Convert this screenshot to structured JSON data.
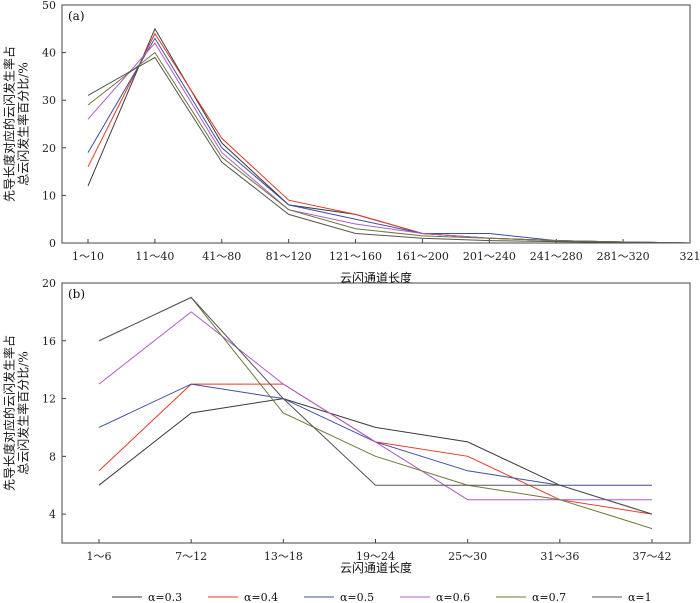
{
  "chart_data": [
    {
      "type": "line",
      "panel_label": "(a)",
      "xlabel": "云闪通道长度",
      "ylabel_line1": "先导长度对应的云闪发生率占",
      "ylabel_line2": "总云闪发生率百分比/%",
      "categories": [
        "1～10",
        "11～40",
        "41～80",
        "81～120",
        "121～160",
        "161～200",
        "201～240",
        "241～280",
        "281～320",
        "321"
      ],
      "ylim": [
        0,
        50
      ],
      "yticks": [
        0,
        10,
        20,
        30,
        40,
        50
      ],
      "series": [
        {
          "name": "α=0.3",
          "color": "#3a3a3a",
          "values": [
            12,
            45,
            21,
            8,
            6,
            2,
            1,
            0.5,
            0.2,
            0
          ]
        },
        {
          "name": "α=0.4",
          "color": "#e03a2a",
          "values": [
            16,
            44,
            22,
            9,
            6,
            2,
            1,
            0.5,
            0.2,
            0
          ]
        },
        {
          "name": "α=0.5",
          "color": "#3d4f9e",
          "values": [
            19,
            43,
            20,
            8,
            5,
            2,
            2,
            0.5,
            0.2,
            0
          ]
        },
        {
          "name": "α=0.6",
          "color": "#b05cc8",
          "values": [
            26,
            42,
            19,
            7,
            4,
            2,
            1,
            0.5,
            0.2,
            0
          ]
        },
        {
          "name": "α=0.7",
          "color": "#6b7a3a",
          "values": [
            29,
            40,
            18,
            7,
            3,
            1.5,
            1,
            0.5,
            0.2,
            0
          ]
        },
        {
          "name": "α=1",
          "color": "#555555",
          "values": [
            31,
            39,
            17,
            6,
            2,
            1,
            0.5,
            0.3,
            0.1,
            0
          ]
        }
      ]
    },
    {
      "type": "line",
      "panel_label": "(b)",
      "xlabel": "云闪通道长度",
      "ylabel_line1": "先导长度对应的云闪发生率占",
      "ylabel_line2": "总云闪发生率百分比/%",
      "categories": [
        "1～6",
        "7～12",
        "13～18",
        "19～24",
        "25～30",
        "31～36",
        "37～42"
      ],
      "ylim": [
        2,
        20
      ],
      "yticks": [
        4,
        8,
        12,
        16,
        20
      ],
      "series": [
        {
          "name": "α=0.3",
          "color": "#3a3a3a",
          "values": [
            6,
            11,
            12,
            10,
            9,
            6,
            4
          ]
        },
        {
          "name": "α=0.4",
          "color": "#e03a2a",
          "values": [
            7,
            13,
            13,
            9,
            8,
            5,
            4
          ]
        },
        {
          "name": "α=0.5",
          "color": "#3d4f9e",
          "values": [
            10,
            13,
            12,
            9,
            7,
            6,
            6
          ]
        },
        {
          "name": "α=0.6",
          "color": "#b05cc8",
          "values": [
            13,
            18,
            13,
            9,
            5,
            5,
            5
          ]
        },
        {
          "name": "α=0.7",
          "color": "#6b7a3a",
          "values": [
            16,
            19,
            11,
            8,
            6,
            5,
            3
          ]
        },
        {
          "name": "α=1",
          "color": "#555555",
          "values": [
            16,
            19,
            12,
            6,
            6,
            6,
            4
          ]
        }
      ]
    }
  ],
  "legend": [
    {
      "label": "α=0.3",
      "color": "#3a3a3a"
    },
    {
      "label": "α=0.4",
      "color": "#e03a2a"
    },
    {
      "label": "α=0.5",
      "color": "#3d4f9e"
    },
    {
      "label": "α=0.6",
      "color": "#b05cc8"
    },
    {
      "label": "α=0.7",
      "color": "#6b7a3a"
    },
    {
      "label": "α=1",
      "color": "#555555"
    }
  ]
}
